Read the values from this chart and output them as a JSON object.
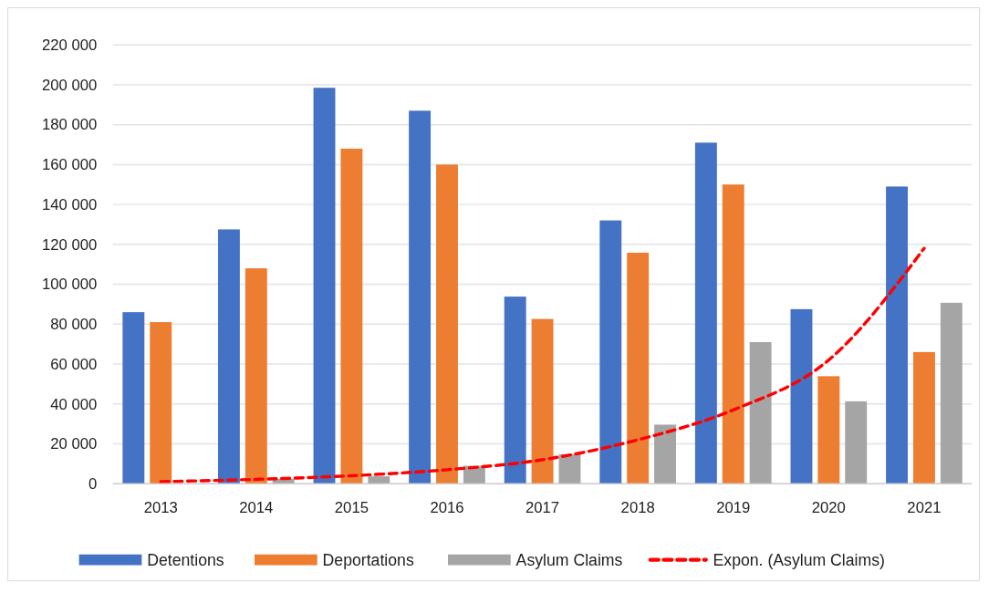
{
  "chart_data": {
    "type": "bar",
    "categories": [
      "2013",
      "2014",
      "2015",
      "2016",
      "2017",
      "2018",
      "2019",
      "2020",
      "2021"
    ],
    "series": [
      {
        "name": "Detentions",
        "color": "#4472c4",
        "values": [
          86000,
          127500,
          198500,
          187000,
          93800,
          132000,
          171000,
          87500,
          149000
        ]
      },
      {
        "name": "Deportations",
        "color": "#ed7d31",
        "values": [
          81000,
          108000,
          168000,
          160000,
          82600,
          115800,
          150000,
          53900,
          66000
        ]
      },
      {
        "name": "Asylum Claims",
        "color": "#a5a5a5",
        "values": [
          null,
          2400,
          3700,
          9000,
          14800,
          29600,
          71000,
          41300,
          90700
        ]
      },
      {
        "name": "Expon. (Asylum Claims)",
        "type": "line",
        "color": "#ff0000",
        "line_style": "dashed",
        "marker": "none",
        "values": [
          1000,
          2200,
          4000,
          7000,
          12000,
          22000,
          37000,
          62000,
          118000
        ]
      }
    ],
    "ylim": [
      0,
      220000
    ],
    "yticks": [
      {
        "value": 0,
        "label": "0"
      },
      {
        "value": 20000,
        "label": "20 000"
      },
      {
        "value": 40000,
        "label": "40 000"
      },
      {
        "value": 60000,
        "label": "60 000"
      },
      {
        "value": 80000,
        "label": "80 000"
      },
      {
        "value": 100000,
        "label": "100 000"
      },
      {
        "value": 120000,
        "label": "120 000"
      },
      {
        "value": 140000,
        "label": "140 000"
      },
      {
        "value": 160000,
        "label": "160 000"
      },
      {
        "value": 180000,
        "label": "180 000"
      },
      {
        "value": 200000,
        "label": "200 000"
      },
      {
        "value": 220000,
        "label": "220 000"
      }
    ],
    "grid": "y",
    "legend": "bottom"
  }
}
